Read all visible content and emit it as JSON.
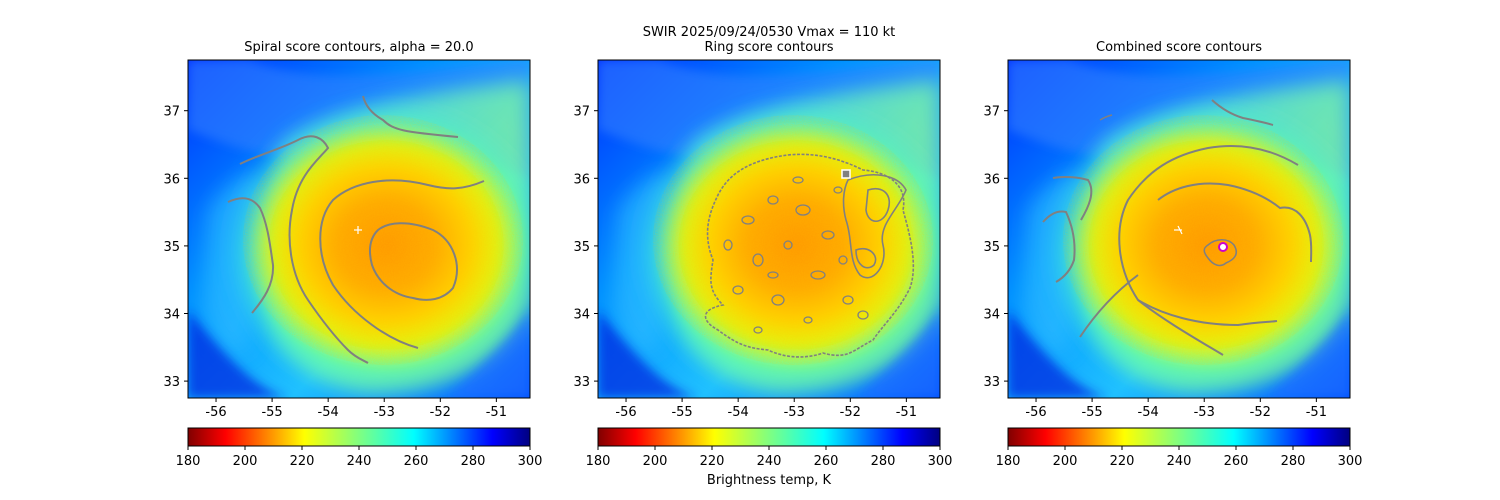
{
  "suptitle": {
    "line1": "SWIR  2025/09/24/0530    Vmax = 110 kt"
  },
  "colorbar_label": "Brightness temp, K",
  "chart_data": [
    {
      "type": "heatmap",
      "title": "Spiral score contours, alpha = 20.0",
      "xlim": [
        -56.5,
        -50.4
      ],
      "ylim": [
        32.75,
        37.75
      ],
      "xticks": [
        "-56",
        "-55",
        "-54",
        "-53",
        "-52",
        "-51"
      ],
      "yticks": [
        "33",
        "34",
        "35",
        "36",
        "37"
      ],
      "center_marker": {
        "lon": -53.45,
        "lat": 35.25,
        "symbol": "+"
      },
      "colormap": "jet_r",
      "colorbar": {
        "min": 180,
        "max": 300,
        "ticks": [
          "180",
          "200",
          "220",
          "240",
          "260",
          "280",
          "300"
        ]
      }
    },
    {
      "type": "heatmap",
      "title": "Ring score contours",
      "xlim": [
        -56.5,
        -50.4
      ],
      "ylim": [
        32.75,
        37.75
      ],
      "xticks": [
        "-56",
        "-55",
        "-54",
        "-53",
        "-52",
        "-51"
      ],
      "yticks": [
        "33",
        "34",
        "35",
        "36",
        "37"
      ],
      "ring_marker": {
        "lon": -52.0,
        "lat": 36.07,
        "symbol": "square"
      },
      "colormap": "jet_r",
      "colorbar": {
        "min": 180,
        "max": 300,
        "ticks": [
          "180",
          "200",
          "220",
          "240",
          "260",
          "280",
          "300"
        ]
      }
    },
    {
      "type": "heatmap",
      "title": "Combined score contours",
      "xlim": [
        -56.5,
        -50.4
      ],
      "ylim": [
        32.75,
        37.75
      ],
      "xticks": [
        "-56",
        "-55",
        "-54",
        "-53",
        "-52",
        "-51"
      ],
      "yticks": [
        "33",
        "34",
        "35",
        "36",
        "37"
      ],
      "center_marker": {
        "lon": -53.45,
        "lat": 35.25,
        "symbol": "+"
      },
      "combined_marker": {
        "lon": -52.65,
        "lat": 35.0,
        "symbol": "circle"
      },
      "colormap": "jet_r",
      "colorbar": {
        "min": 180,
        "max": 300,
        "ticks": [
          "180",
          "200",
          "220",
          "240",
          "260",
          "280",
          "300"
        ]
      }
    }
  ],
  "colors": {
    "contour": "#808080",
    "combined_marker": "#cc00cc",
    "center_marker": "#ffffff"
  }
}
